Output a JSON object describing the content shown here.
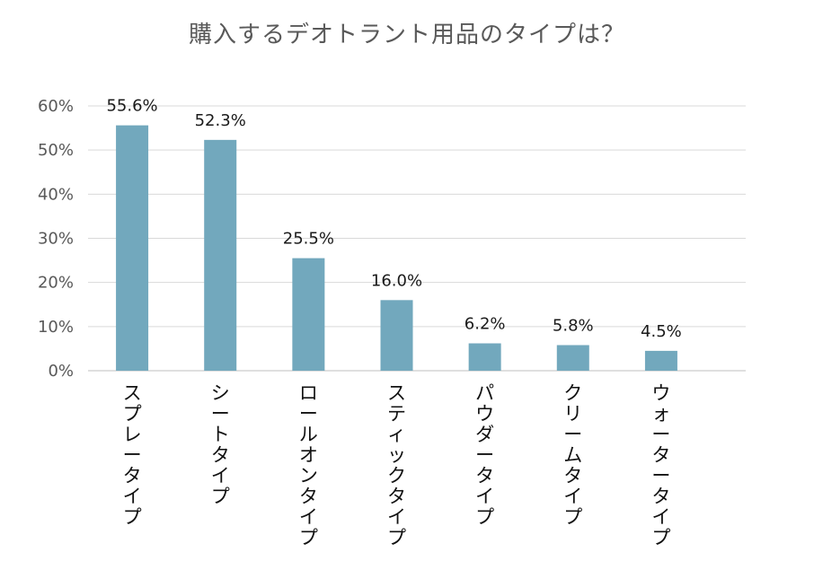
{
  "chart_data": {
    "type": "bar",
    "title": "購入するデオトラント用品のタイプは？",
    "categories": [
      "スプレータイプ",
      "シートタイプ",
      "ロールオンタイプ",
      "スティックタイプ",
      "パウダータイプ",
      "クリームタイプ",
      "ウォータータイプ"
    ],
    "values": [
      55.6,
      52.3,
      25.5,
      16.0,
      6.2,
      5.8,
      4.5
    ],
    "data_labels": [
      "55.6%",
      "52.3%",
      "25.5%",
      "16.0%",
      "6.2%",
      "5.8%",
      "4.5%"
    ],
    "y_ticks": [
      "0%",
      "10%",
      "20%",
      "30%",
      "40%",
      "50%",
      "60%"
    ],
    "ylim": [
      0,
      60
    ],
    "grid": true,
    "bar_color": "#72a8bd",
    "grid_color": "#d9d9d9",
    "category_label_orientation": "vertical"
  }
}
